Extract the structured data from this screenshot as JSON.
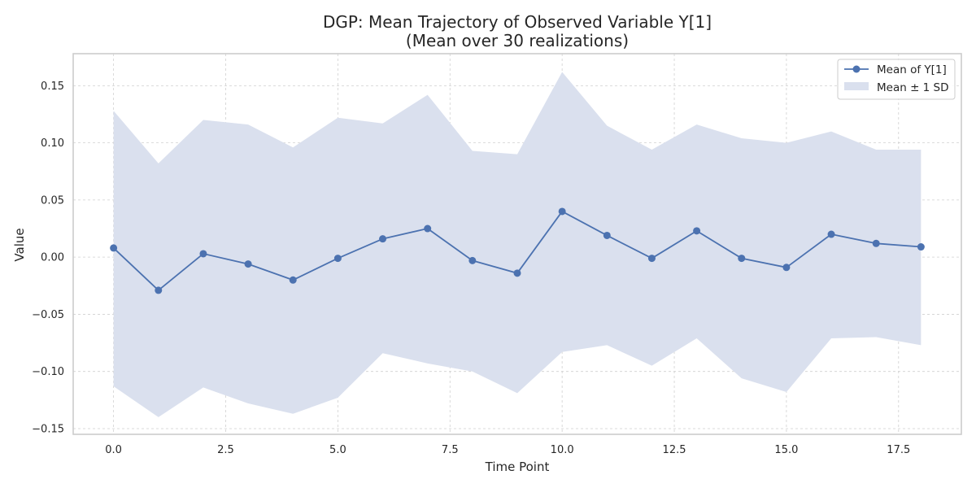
{
  "chart_data": {
    "type": "line",
    "title": "DGP: Mean Trajectory of Observed Variable Y[1]",
    "subtitle": "(Mean over 30 realizations)",
    "xlabel": "Time Point",
    "ylabel": "Value",
    "xlim": [
      -0.9,
      18.9
    ],
    "ylim": [
      -0.155,
      0.178
    ],
    "xticks": [
      0,
      2.5,
      5,
      7.5,
      10,
      12.5,
      15,
      17.5
    ],
    "xtick_labels": [
      "0.0",
      "2.5",
      "5.0",
      "7.5",
      "10.0",
      "12.5",
      "15.0",
      "17.5"
    ],
    "yticks": [
      -0.15,
      -0.1,
      -0.05,
      0.0,
      0.05,
      0.1,
      0.15
    ],
    "ytick_labels": [
      "−0.15",
      "−0.10",
      "−0.05",
      "0.00",
      "0.05",
      "0.10",
      "0.15"
    ],
    "grid": true,
    "legend_position": "top-right",
    "x": [
      0,
      1,
      2,
      3,
      4,
      5,
      6,
      7,
      8,
      9,
      10,
      11,
      12,
      13,
      14,
      15,
      16,
      17,
      18
    ],
    "series": [
      {
        "name": "Mean of Y[1]",
        "values": [
          0.008,
          -0.029,
          0.003,
          -0.006,
          -0.02,
          -0.001,
          0.016,
          0.025,
          -0.003,
          -0.014,
          0.04,
          0.019,
          -0.001,
          0.023,
          -0.001,
          -0.009,
          0.02,
          0.012,
          0.009
        ],
        "color": "#4c72b0"
      }
    ],
    "band": {
      "name": "Mean ± 1 SD",
      "upper": [
        0.128,
        0.082,
        0.12,
        0.116,
        0.096,
        0.122,
        0.117,
        0.142,
        0.093,
        0.09,
        0.162,
        0.115,
        0.094,
        0.116,
        0.104,
        0.1,
        0.11,
        0.094,
        0.094
      ],
      "lower": [
        -0.113,
        -0.14,
        -0.114,
        -0.128,
        -0.137,
        -0.123,
        -0.084,
        -0.093,
        -0.1,
        -0.119,
        -0.083,
        -0.077,
        -0.095,
        -0.071,
        -0.106,
        -0.118,
        -0.071,
        -0.07,
        -0.077
      ],
      "color": "#dae0ee"
    }
  }
}
